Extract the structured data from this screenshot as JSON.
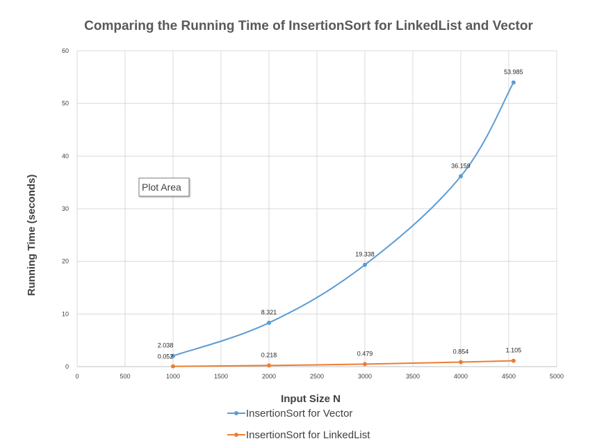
{
  "chart_data": {
    "type": "line",
    "title": "Comparing the Running Time of InsertionSort for LinkedList and Vector",
    "xlabel": "Input Size N",
    "ylabel": "Running Time (seconds)",
    "xlim": [
      0,
      5000
    ],
    "ylim": [
      0,
      60
    ],
    "x_ticks": [
      "0",
      "500",
      "1000",
      "1500",
      "2000",
      "2500",
      "3000",
      "3500",
      "4000",
      "4500",
      "5000"
    ],
    "y_ticks": [
      "0",
      "10",
      "20",
      "30",
      "40",
      "50",
      "60"
    ],
    "grid": true,
    "legend_position": "bottom",
    "series": [
      {
        "name": "InsertionSort for Vector",
        "color": "#5b9bd5",
        "x": [
          1000,
          2000,
          3000,
          4000,
          4550
        ],
        "values": [
          2.038,
          8.321,
          19.338,
          36.159,
          53.985
        ],
        "labels": [
          "2.038",
          "8.321",
          "19.338",
          "36.159",
          "53.985"
        ]
      },
      {
        "name": "InsertionSort for LinkedList",
        "color": "#ed7d31",
        "x": [
          1000,
          2000,
          3000,
          4000,
          4550
        ],
        "values": [
          0.052,
          0.218,
          0.479,
          0.854,
          1.105
        ],
        "labels": [
          "0.052",
          "0.218",
          "0.479",
          "0.854",
          "1.105"
        ]
      }
    ],
    "annotation": "Plot Area"
  }
}
